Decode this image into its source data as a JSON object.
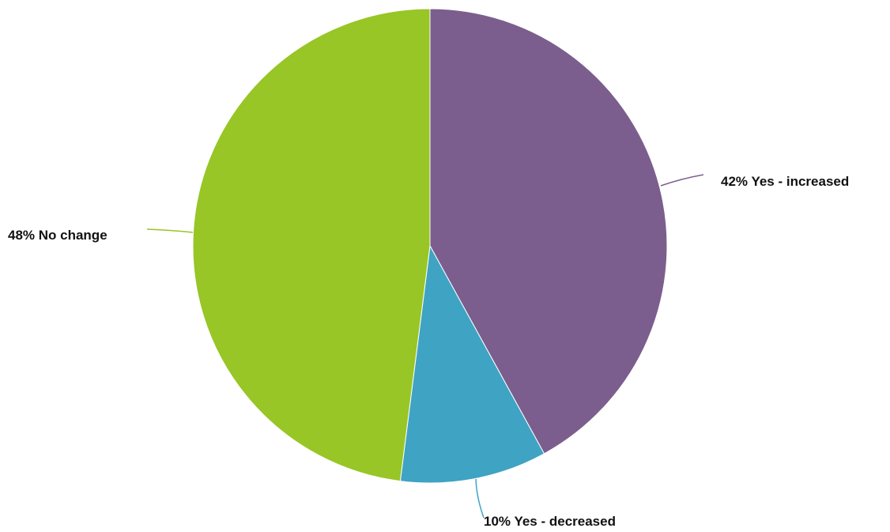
{
  "chart_data": {
    "type": "pie",
    "title": "",
    "slices": [
      {
        "category": "Yes - increased",
        "value": 42,
        "label": "42% Yes - increased",
        "color": "#7b5e8d"
      },
      {
        "category": "Yes - decreased",
        "value": 10,
        "label": "10% Yes - decreased",
        "color": "#3fa3c3"
      },
      {
        "category": "No change",
        "value": 48,
        "label": "48% No change",
        "color": "#97c626"
      }
    ],
    "start_angle_deg": 0,
    "direction": "clockwise",
    "legend": "none"
  }
}
